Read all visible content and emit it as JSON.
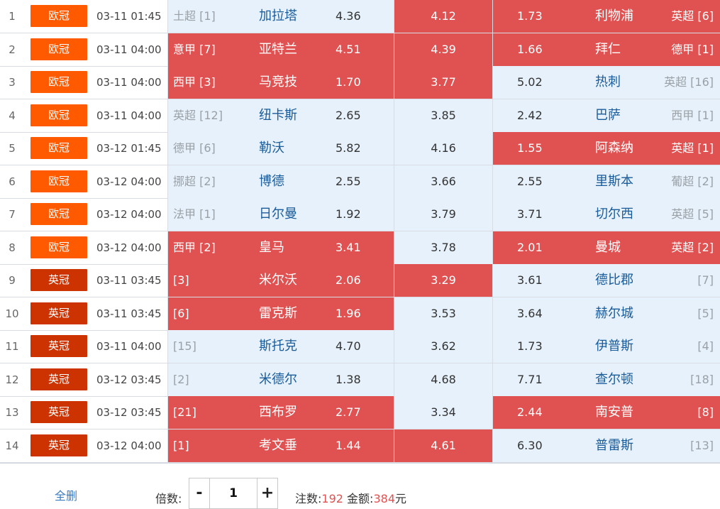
{
  "matches": [
    {
      "idx": "1",
      "comp": "欧冠",
      "time": "03-11 01:45",
      "home_league": "土超 [1]",
      "home_team": "加拉塔",
      "home_odds": "4.36",
      "draw_odds": "4.12",
      "away_odds": "1.73",
      "away_team": "利物浦",
      "away_league": "英超 [6]"
    },
    {
      "idx": "2",
      "comp": "欧冠",
      "time": "03-11 04:00",
      "home_league": "意甲 [7]",
      "home_team": "亚特兰",
      "home_odds": "4.51",
      "draw_odds": "4.39",
      "away_odds": "1.66",
      "away_team": "拜仁",
      "away_league": "德甲 [1]"
    },
    {
      "idx": "3",
      "comp": "欧冠",
      "time": "03-11 04:00",
      "home_league": "西甲 [3]",
      "home_team": "马竞技",
      "home_odds": "1.70",
      "draw_odds": "3.77",
      "away_odds": "5.02",
      "away_team": "热刺",
      "away_league": "英超 [16]"
    },
    {
      "idx": "4",
      "comp": "欧冠",
      "time": "03-11 04:00",
      "home_league": "英超 [12]",
      "home_team": "纽卡斯",
      "home_odds": "2.65",
      "draw_odds": "3.85",
      "away_odds": "2.42",
      "away_team": "巴萨",
      "away_league": "西甲 [1]"
    },
    {
      "idx": "5",
      "comp": "欧冠",
      "time": "03-12 01:45",
      "home_league": "德甲 [6]",
      "home_team": "勒沃",
      "home_odds": "5.82",
      "draw_odds": "4.16",
      "away_odds": "1.55",
      "away_team": "阿森纳",
      "away_league": "英超 [1]"
    },
    {
      "idx": "6",
      "comp": "欧冠",
      "time": "03-12 04:00",
      "home_league": "挪超 [2]",
      "home_team": "博德",
      "home_odds": "2.55",
      "draw_odds": "3.66",
      "away_odds": "2.55",
      "away_team": "里斯本",
      "away_league": "葡超 [2]"
    },
    {
      "idx": "7",
      "comp": "欧冠",
      "time": "03-12 04:00",
      "home_league": "法甲 [1]",
      "home_team": "日尔曼",
      "home_odds": "1.92",
      "draw_odds": "3.79",
      "away_odds": "3.71",
      "away_team": "切尔西",
      "away_league": "英超 [5]"
    },
    {
      "idx": "8",
      "comp": "欧冠",
      "time": "03-12 04:00",
      "home_league": "西甲 [2]",
      "home_team": "皇马",
      "home_odds": "3.41",
      "draw_odds": "3.78",
      "away_odds": "2.01",
      "away_team": "曼城",
      "away_league": "英超 [2]"
    },
    {
      "idx": "9",
      "comp": "英冠",
      "time": "03-11 03:45",
      "home_league": "[3]",
      "home_team": "米尔沃",
      "home_odds": "2.06",
      "draw_odds": "3.29",
      "away_odds": "3.61",
      "away_team": "德比郡",
      "away_league": "[7]"
    },
    {
      "idx": "10",
      "comp": "英冠",
      "time": "03-11 03:45",
      "home_league": "[6]",
      "home_team": "雷克斯",
      "home_odds": "1.96",
      "draw_odds": "3.53",
      "away_odds": "3.64",
      "away_team": "赫尔城",
      "away_league": "[5]"
    },
    {
      "idx": "11",
      "comp": "英冠",
      "time": "03-11 04:00",
      "home_league": "[15]",
      "home_team": "斯托克",
      "home_odds": "4.70",
      "draw_odds": "3.62",
      "away_odds": "1.73",
      "away_team": "伊普斯",
      "away_league": "[4]"
    },
    {
      "idx": "12",
      "comp": "英冠",
      "time": "03-12 03:45",
      "home_league": "[2]",
      "home_team": "米德尔",
      "home_odds": "1.38",
      "draw_odds": "4.68",
      "away_odds": "7.71",
      "away_team": "查尔顿",
      "away_league": "[18]"
    },
    {
      "idx": "13",
      "comp": "英冠",
      "time": "03-12 03:45",
      "home_league": "[21]",
      "home_team": "西布罗",
      "home_odds": "2.77",
      "draw_odds": "3.34",
      "away_odds": "2.44",
      "away_team": "南安普",
      "away_league": "[8]"
    },
    {
      "idx": "14",
      "comp": "英冠",
      "time": "03-12 04:00",
      "home_league": "[1]",
      "home_team": "考文垂",
      "home_odds": "1.44",
      "draw_odds": "4.61",
      "away_odds": "6.30",
      "away_team": "普雷斯",
      "away_league": "[13]"
    }
  ],
  "colors": {
    "selected": "#e05252",
    "unselected": "#e6f1fb",
    "ucl_badge": "#ff5a00",
    "efl_badge": "#cc3300",
    "team_text": "#1a5c9a"
  },
  "footer": {
    "clear_label": "全删",
    "multiplier_label": "倍数:",
    "minus": "-",
    "multiplier_value": "1",
    "plus": "+",
    "count_label": "注数:",
    "count_value": "192",
    "amount_label": "金额:",
    "amount_value": "384",
    "amount_unit": "元"
  }
}
